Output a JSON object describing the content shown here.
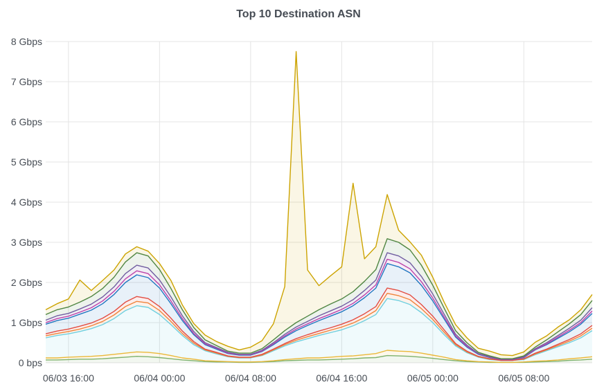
{
  "chart_data": {
    "type": "area",
    "stacked": true,
    "title": "Top 10 Destination ASN",
    "xlabel": "",
    "ylabel": "",
    "y_unit": "Gbps",
    "ylim": [
      0,
      8
    ],
    "y_ticks": [
      "0 bps",
      "1 Gbps",
      "2 Gbps",
      "3 Gbps",
      "4 Gbps",
      "5 Gbps",
      "6 Gbps",
      "7 Gbps",
      "8 Gbps"
    ],
    "x_range": [
      "06/03 14:00",
      "06/05 14:00"
    ],
    "x_step": "1h",
    "x_ticks": [
      "06/03 16:00",
      "06/04 00:00",
      "06/04 08:00",
      "06/04 16:00",
      "06/05 00:00",
      "06/05 08:00"
    ],
    "grid": true,
    "legend": "none",
    "fill_opacity": 0.1,
    "series": [
      {
        "color": "#7EB26D",
        "values": [
          0.07,
          0.07,
          0.08,
          0.09,
          0.09,
          0.1,
          0.12,
          0.14,
          0.16,
          0.15,
          0.13,
          0.1,
          0.07,
          0.05,
          0.03,
          0.02,
          0.02,
          0.01,
          0.01,
          0.02,
          0.03,
          0.05,
          0.06,
          0.07,
          0.07,
          0.08,
          0.09,
          0.1,
          0.12,
          0.13,
          0.18,
          0.17,
          0.16,
          0.14,
          0.11,
          0.08,
          0.05,
          0.03,
          0.02,
          0.01,
          0.01,
          0.01,
          0.01,
          0.02,
          0.03,
          0.04,
          0.06,
          0.07,
          0.09
        ]
      },
      {
        "color": "#EAB839",
        "values": [
          0.05,
          0.05,
          0.06,
          0.06,
          0.07,
          0.08,
          0.09,
          0.1,
          0.11,
          0.11,
          0.1,
          0.08,
          0.05,
          0.04,
          0.02,
          0.02,
          0.01,
          0.01,
          0.01,
          0.01,
          0.02,
          0.03,
          0.04,
          0.05,
          0.05,
          0.06,
          0.07,
          0.07,
          0.08,
          0.1,
          0.13,
          0.12,
          0.12,
          0.1,
          0.08,
          0.06,
          0.03,
          0.02,
          0.01,
          0.01,
          0,
          0,
          0.01,
          0.02,
          0.02,
          0.03,
          0.04,
          0.05,
          0.06
        ]
      },
      {
        "color": "#6ED0E0",
        "values": [
          0.5,
          0.56,
          0.58,
          0.63,
          0.69,
          0.77,
          0.89,
          1.06,
          1.15,
          1.12,
          0.97,
          0.77,
          0.56,
          0.36,
          0.25,
          0.18,
          0.12,
          0.1,
          0.1,
          0.15,
          0.25,
          0.34,
          0.42,
          0.48,
          0.56,
          0.61,
          0.66,
          0.75,
          0.85,
          0.97,
          1.29,
          1.26,
          1.17,
          1.01,
          0.81,
          0.56,
          0.34,
          0.2,
          0.11,
          0.06,
          0.05,
          0.05,
          0.06,
          0.16,
          0.25,
          0.33,
          0.4,
          0.5,
          0.65
        ]
      },
      {
        "color": "#EF843C",
        "values": [
          0.05,
          0.05,
          0.06,
          0.06,
          0.07,
          0.08,
          0.09,
          0.1,
          0.11,
          0.11,
          0.1,
          0.08,
          0.05,
          0.04,
          0.02,
          0.02,
          0.01,
          0.01,
          0.01,
          0.01,
          0.02,
          0.03,
          0.04,
          0.05,
          0.05,
          0.06,
          0.07,
          0.07,
          0.08,
          0.1,
          0.13,
          0.12,
          0.12,
          0.1,
          0.08,
          0.06,
          0.03,
          0.02,
          0.01,
          0.01,
          0,
          0,
          0.01,
          0.02,
          0.02,
          0.03,
          0.04,
          0.05,
          0.06
        ]
      },
      {
        "color": "#E24D42",
        "values": [
          0.05,
          0.06,
          0.06,
          0.07,
          0.07,
          0.08,
          0.09,
          0.11,
          0.12,
          0.11,
          0.1,
          0.08,
          0.06,
          0.04,
          0.02,
          0.02,
          0.01,
          0.01,
          0.01,
          0.02,
          0.02,
          0.03,
          0.04,
          0.05,
          0.06,
          0.06,
          0.07,
          0.08,
          0.09,
          0.1,
          0.13,
          0.13,
          0.12,
          0.1,
          0.08,
          0.06,
          0.03,
          0.02,
          0.01,
          0.01,
          0,
          0,
          0.01,
          0.02,
          0.02,
          0.03,
          0.04,
          0.05,
          0.07
        ]
      },
      {
        "color": "#1F78C1",
        "values": [
          0.24,
          0.26,
          0.27,
          0.3,
          0.32,
          0.36,
          0.42,
          0.49,
          0.54,
          0.52,
          0.46,
          0.36,
          0.26,
          0.17,
          0.11,
          0.08,
          0.06,
          0.05,
          0.05,
          0.07,
          0.11,
          0.16,
          0.2,
          0.23,
          0.26,
          0.29,
          0.31,
          0.35,
          0.4,
          0.46,
          0.61,
          0.59,
          0.55,
          0.48,
          0.38,
          0.27,
          0.16,
          0.1,
          0.05,
          0.03,
          0.02,
          0.02,
          0.03,
          0.08,
          0.11,
          0.15,
          0.19,
          0.24,
          0.3
        ]
      },
      {
        "color": "#BA43A9",
        "values": [
          0.04,
          0.05,
          0.05,
          0.05,
          0.06,
          0.07,
          0.08,
          0.09,
          0.1,
          0.1,
          0.08,
          0.07,
          0.05,
          0.03,
          0.02,
          0.02,
          0.01,
          0.01,
          0.01,
          0.01,
          0.02,
          0.03,
          0.04,
          0.04,
          0.05,
          0.05,
          0.06,
          0.06,
          0.07,
          0.08,
          0.11,
          0.11,
          0.1,
          0.09,
          0.07,
          0.05,
          0.03,
          0.02,
          0.01,
          0.01,
          0,
          0,
          0.01,
          0.01,
          0.02,
          0.03,
          0.04,
          0.04,
          0.06
        ]
      },
      {
        "color": "#705DA0",
        "values": [
          0.06,
          0.07,
          0.07,
          0.08,
          0.09,
          0.1,
          0.11,
          0.13,
          0.14,
          0.14,
          0.12,
          0.1,
          0.07,
          0.05,
          0.03,
          0.02,
          0.02,
          0.01,
          0.01,
          0.02,
          0.03,
          0.04,
          0.05,
          0.06,
          0.07,
          0.08,
          0.08,
          0.09,
          0.11,
          0.12,
          0.16,
          0.16,
          0.15,
          0.13,
          0.1,
          0.07,
          0.04,
          0.03,
          0.01,
          0.01,
          0.01,
          0.01,
          0.01,
          0.02,
          0.03,
          0.04,
          0.05,
          0.06,
          0.08
        ]
      },
      {
        "color": "#508642",
        "values": [
          0.14,
          0.15,
          0.16,
          0.17,
          0.19,
          0.21,
          0.24,
          0.29,
          0.31,
          0.3,
          0.26,
          0.21,
          0.15,
          0.1,
          0.07,
          0.05,
          0.03,
          0.03,
          0.03,
          0.04,
          0.07,
          0.09,
          0.11,
          0.13,
          0.15,
          0.17,
          0.18,
          0.2,
          0.23,
          0.26,
          0.35,
          0.34,
          0.32,
          0.28,
          0.22,
          0.15,
          0.09,
          0.06,
          0.03,
          0.02,
          0.01,
          0.01,
          0.02,
          0.04,
          0.07,
          0.09,
          0.11,
          0.14,
          0.18
        ]
      },
      {
        "color": "#CCA300",
        "values": [
          0.12,
          0.15,
          0.2,
          0.55,
          0.15,
          0.2,
          0.18,
          0.2,
          0.15,
          0.12,
          0.15,
          0.2,
          0.12,
          0.1,
          0.12,
          0.1,
          0.12,
          0.08,
          0.15,
          0.2,
          0.4,
          1.1,
          6.75,
          1.15,
          0.6,
          0.7,
          0.8,
          2.7,
          0.56,
          0.57,
          1.1,
          0.3,
          0.2,
          0.25,
          0.2,
          0.15,
          0.15,
          0.12,
          0.1,
          0.12,
          0.1,
          0.08,
          0.1,
          0.12,
          0.1,
          0.12,
          0.1,
          0.12,
          0.15
        ]
      }
    ]
  }
}
